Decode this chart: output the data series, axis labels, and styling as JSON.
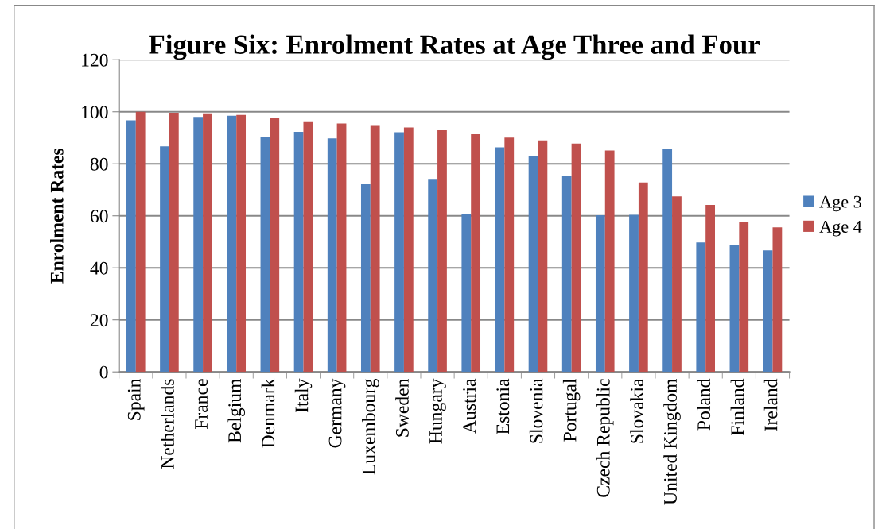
{
  "chart_data": {
    "type": "bar",
    "title": "Figure Six: Enrolment Rates at Age Three and Four",
    "ylabel": "Enrolment Rates",
    "categories": [
      "Spain",
      "Netherlands",
      "France",
      "Belgium",
      "Denmark",
      "Italy",
      "Germany",
      "Luxembourg",
      "Sweden",
      "Hungary",
      "Austria",
      "Estonia",
      "Slovenia",
      "Portugal",
      "Czech Republic",
      "Slovakia",
      "United Kingdom",
      "Poland",
      "Finland",
      "Ireland"
    ],
    "series": [
      {
        "name": "Age 3",
        "color": "#4f81bd",
        "values": [
          96.7,
          86.7,
          98,
          98.5,
          90.4,
          92.3,
          89.8,
          72.1,
          92.1,
          74.2,
          60.5,
          86.3,
          82.8,
          75.3,
          60.2,
          60.4,
          85.8,
          49.8,
          48.8,
          46.7
        ]
      },
      {
        "name": "Age 4",
        "color": "#c0504d",
        "values": [
          100,
          99.6,
          99.4,
          98.8,
          97.5,
          96.3,
          95.5,
          94.6,
          94,
          92.9,
          91.4,
          90.1,
          89,
          87.8,
          85.1,
          72.8,
          67.5,
          64.2,
          57.6,
          55.6
        ]
      }
    ],
    "ylim": [
      0,
      120
    ],
    "yticks": [
      0,
      20,
      40,
      60,
      80,
      100,
      120
    ],
    "grid": "y",
    "legend": "right"
  }
}
